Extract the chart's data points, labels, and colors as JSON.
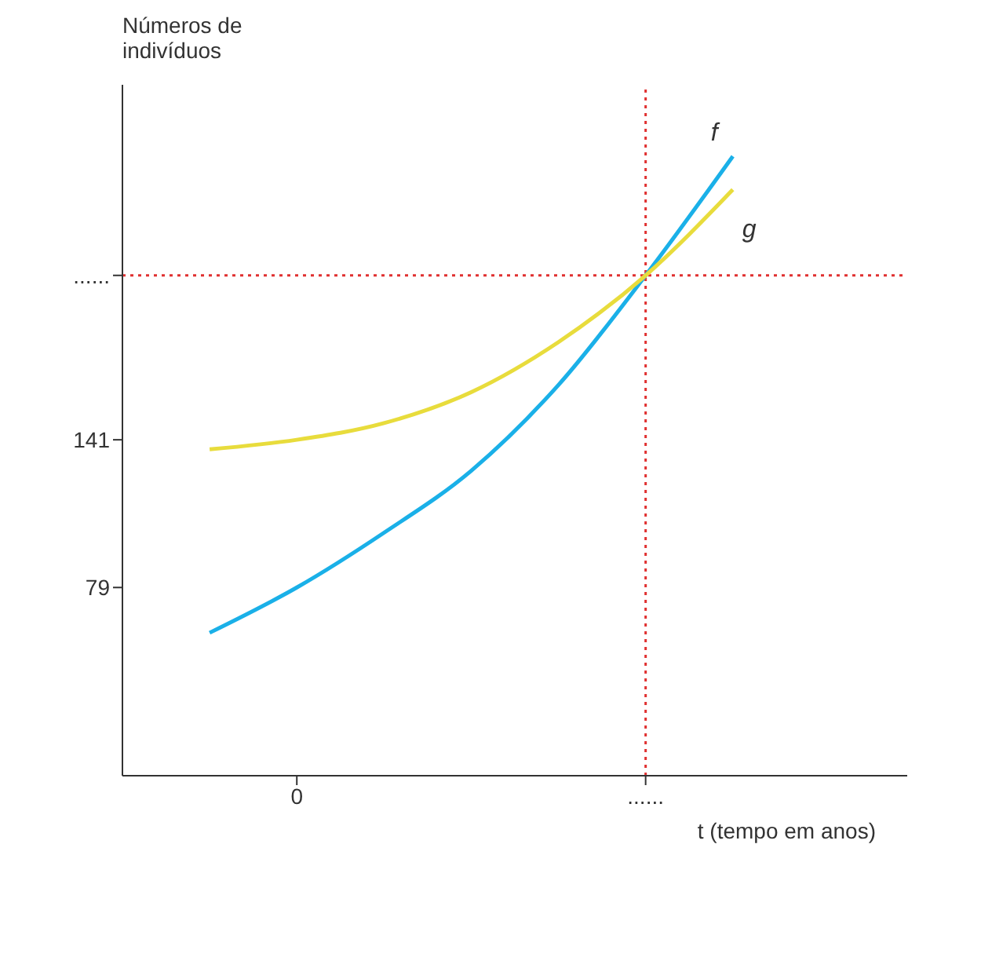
{
  "chart_data": {
    "type": "line",
    "xlabel": "t (tempo em anos)",
    "ylabel": "Números de indivíduos",
    "categories": [
      null,
      null,
      "0",
      null,
      null,
      null,
      "......",
      null,
      null,
      null
    ],
    "series": [
      {
        "name": "f",
        "color": "#1ab0e8",
        "values": [
          null,
          60,
          79,
          102,
          128,
          164,
          210,
          260,
          null,
          null
        ]
      },
      {
        "name": "g",
        "color": "#e8dc3c",
        "values": [
          null,
          137,
          141,
          148,
          161,
          182,
          210,
          246,
          null,
          null
        ]
      }
    ],
    "ylim": [
      0,
      290
    ],
    "yticks": [
      79,
      141,
      {
        "value": 210,
        "label": "......"
      }
    ],
    "ref_lines": [
      {
        "axis": "x",
        "value": "......",
        "color": "#e03030",
        "line_style": "dotted"
      },
      {
        "axis": "y",
        "value": 210,
        "color": "#e03030",
        "line_style": "dotted"
      }
    ],
    "grid": false,
    "legend": false,
    "marker": "none",
    "line_style": "solid"
  }
}
